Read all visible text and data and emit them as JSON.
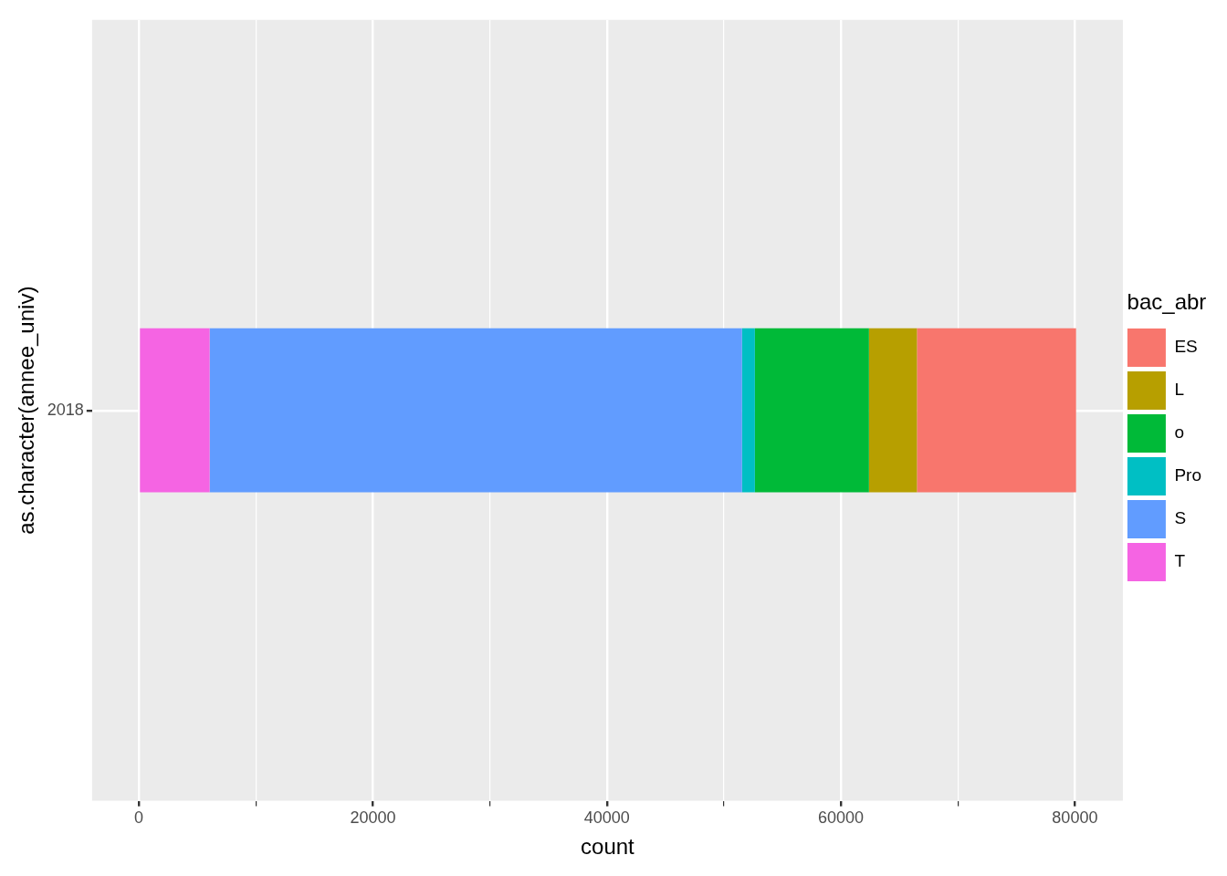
{
  "chart_data": {
    "type": "bar",
    "orientation": "horizontal",
    "stacked": true,
    "xlabel": "count",
    "ylabel": "as.character(annee_univ)",
    "legend_title": "bac_abr",
    "legend": "right",
    "grid": true,
    "categories": [
      "2018"
    ],
    "xlim": [
      -4000,
      84100
    ],
    "xticks": [
      0,
      {
        "value": 10000,
        "label": null
      },
      20000,
      {
        "value": 30000,
        "label": null
      },
      40000,
      {
        "value": 50000,
        "label": null
      },
      60000,
      {
        "value": 70000,
        "label": null
      },
      80000
    ],
    "series": [
      {
        "name": "T",
        "color": "#f564e3",
        "values": [
          6050
        ]
      },
      {
        "name": "S",
        "color": "#619cff",
        "values": [
          45500
        ]
      },
      {
        "name": "Pro",
        "color": "#00bfc4",
        "values": [
          1100
        ]
      },
      {
        "name": "o",
        "color": "#00ba38",
        "values": [
          9750
        ]
      },
      {
        "name": "L",
        "color": "#b79f00",
        "values": [
          4100
        ]
      },
      {
        "name": "ES",
        "color": "#f8766d",
        "values": [
          13600
        ]
      }
    ]
  }
}
